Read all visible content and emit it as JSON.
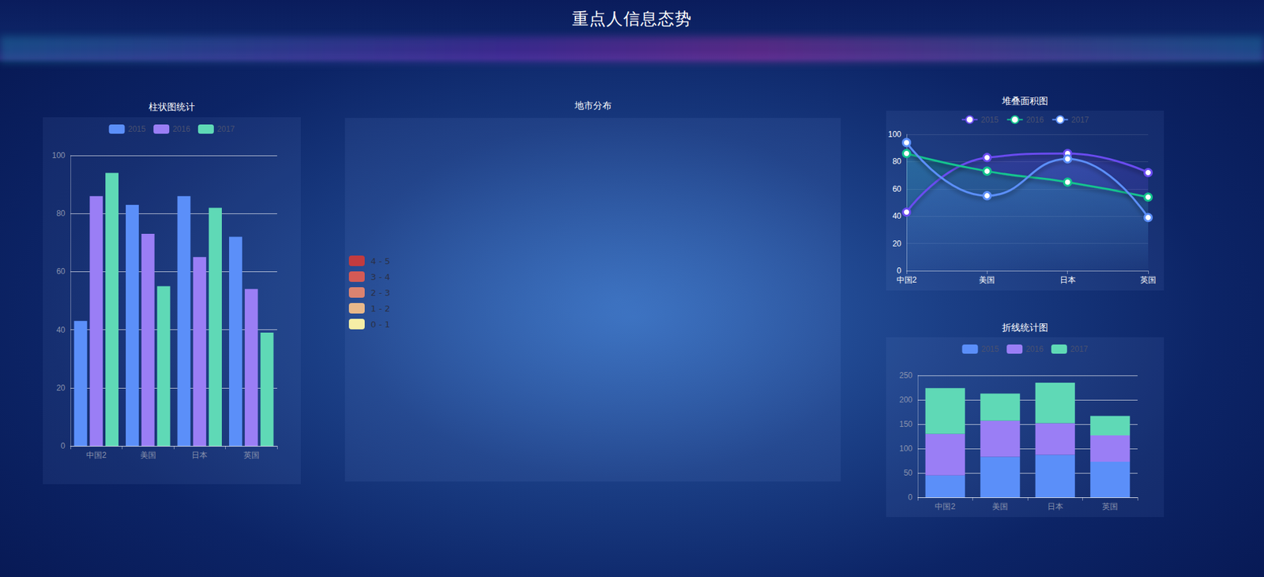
{
  "title": "重点人信息态势",
  "chart_data": [
    {
      "type": "bar",
      "title": "柱状图统计",
      "categories": [
        "中国2",
        "美国",
        "日本",
        "英国"
      ],
      "series": [
        {
          "name": "2015",
          "color": "#5b8ff9",
          "values": [
            43,
            83,
            86,
            72
          ]
        },
        {
          "name": "2016",
          "color": "#9a7ef5",
          "values": [
            86,
            73,
            65,
            54
          ]
        },
        {
          "name": "2017",
          "color": "#5fd9b6",
          "values": [
            94,
            55,
            82,
            39
          ]
        }
      ],
      "ylim": [
        0,
        100
      ],
      "yticks": [
        0,
        20,
        40,
        60,
        80,
        100
      ],
      "grid": true,
      "legend": "top"
    },
    {
      "type": "map",
      "title": "地市分布",
      "pieces": [
        {
          "label": "4 - 5",
          "color": "#c23b3f"
        },
        {
          "label": "3 - 4",
          "color": "#d45a55"
        },
        {
          "label": "2 - 3",
          "color": "#db8370"
        },
        {
          "label": "1 - 2",
          "color": "#e8b88a"
        },
        {
          "label": "0 - 1",
          "color": "#f6eea6"
        }
      ],
      "legend": "left"
    },
    {
      "type": "line",
      "title": "堆叠面积图",
      "categories": [
        "中国2",
        "美国",
        "日本",
        "英国"
      ],
      "series": [
        {
          "name": "2015",
          "color": "#6a4cf0",
          "values": [
            43,
            83,
            86,
            72
          ],
          "marker": "circle"
        },
        {
          "name": "2016",
          "color": "#12c48e",
          "values": [
            86,
            73,
            65,
            54
          ],
          "marker": "circle"
        },
        {
          "name": "2017",
          "color": "#5b8ff9",
          "values": [
            94,
            55,
            82,
            39
          ],
          "marker": "circle"
        }
      ],
      "ylim": [
        0,
        100
      ],
      "yticks": [
        0,
        20,
        40,
        60,
        80,
        100
      ],
      "grid": true,
      "legend": "top"
    },
    {
      "type": "bar",
      "title": "折线统计图",
      "stacked": true,
      "categories": [
        "中国2",
        "美国",
        "日本",
        "英国"
      ],
      "series": [
        {
          "name": "2015",
          "color": "#5b8ff9",
          "values": [
            45,
            83,
            87,
            73
          ]
        },
        {
          "name": "2016",
          "color": "#9a7ef5",
          "values": [
            85,
            74,
            65,
            54
          ]
        },
        {
          "name": "2017",
          "color": "#5fd9b6",
          "values": [
            94,
            56,
            83,
            40
          ]
        }
      ],
      "ylim": [
        0,
        250
      ],
      "yticks": [
        0,
        50,
        100,
        150,
        200,
        250
      ],
      "grid": true,
      "legend": "top"
    }
  ]
}
